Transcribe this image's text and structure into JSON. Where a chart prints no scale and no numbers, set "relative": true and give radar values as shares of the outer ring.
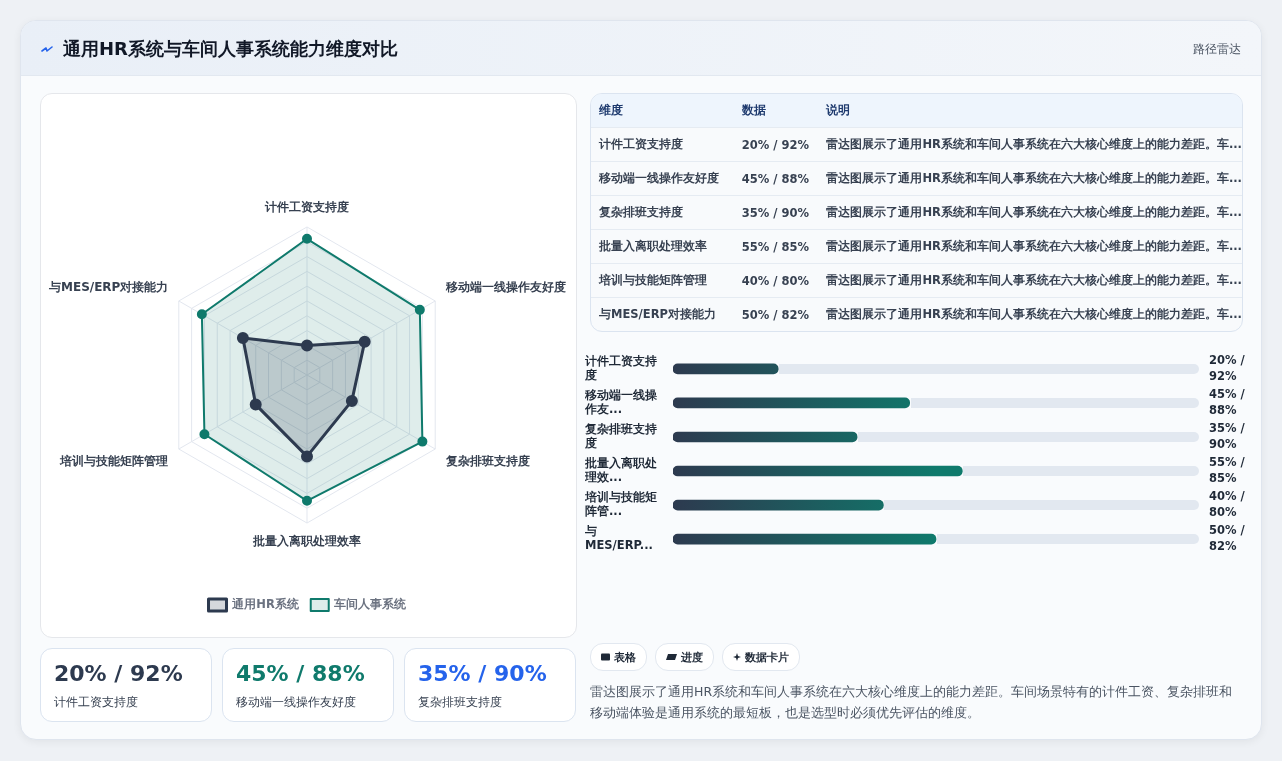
{
  "chart_data": [
    {
      "type": "other",
      "title": "通用HR系统与车间人事系统能力维度对比",
      "subtitle": "路径雷达"
    },
    {
      "type": "radar",
      "relative": true,
      "categories": [
        "计件工资支持度",
        "移动端一线操作友好度",
        "复杂排班支持度",
        "批量入离职处理效率",
        "培训与技能矩阵管理",
        "与MES/ERP对接能力"
      ],
      "series": [
        {
          "name": "通用HR系统",
          "color": "#2d3a4f",
          "values": [
            0.2,
            0.45,
            0.35,
            0.55,
            0.4,
            0.5
          ]
        },
        {
          "name": "车间人事系统",
          "color": "#0f7a6c",
          "values": [
            0.92,
            0.88,
            0.9,
            0.85,
            0.8,
            0.82
          ]
        }
      ],
      "grid": true,
      "legend": "bottom",
      "marker": "circle"
    },
    {
      "type": "other",
      "categories": [
        "计件工资支持度",
        "移动端一线操作友好度",
        "复杂排班支持度",
        "批量入离职处理效率",
        "培训与技能矩阵管理",
        "与MES/ERP对接能力"
      ],
      "value_labels": [
        "20% / 92%",
        "45% / 88%",
        "35% / 90%",
        "55% / 85%",
        "40% / 80%",
        "50% / 82%"
      ],
      "annotations": [
        "维度",
        "数据",
        "说明",
        "雷达图展示了通用HR系统和车间人事系统在六大核心维度上的能力差距。车..."
      ]
    },
    {
      "type": "bar",
      "orientation": "horizontal",
      "categories": [
        "计件工资支持度",
        "移动端一线操作友...",
        "复杂排班支持度",
        "批量入离职处理效...",
        "培训与技能矩阵管...",
        "与MES/ERP..."
      ],
      "values": [
        20,
        45,
        35,
        55,
        40,
        50
      ],
      "value_labels": [
        "20% / 92%",
        "45% / 88%",
        "35% / 90%",
        "55% / 85%",
        "40% / 80%",
        "50% / 82%"
      ],
      "color": "#0f7a6c",
      "xlim": [
        0,
        100
      ],
      "tick_labels": "y"
    },
    {
      "type": "other",
      "categories": [
        "计件工资支持度",
        "移动端一线操作友好度",
        "复杂排班支持度"
      ],
      "value_labels": [
        "20% / 92%",
        "45% / 88%",
        "35% / 90%"
      ]
    },
    {
      "type": "other",
      "annotations": [
        "表格",
        "进度",
        "数据卡片",
        "雷达图展示了通用HR系统和车间人事系统在六大核心维度上的能力差距。车间场景特有的计件工资、复杂排班和移动端体验是通用系统的最短板，也是选型时必须优先评估的维度。"
      ]
    }
  ]
}
